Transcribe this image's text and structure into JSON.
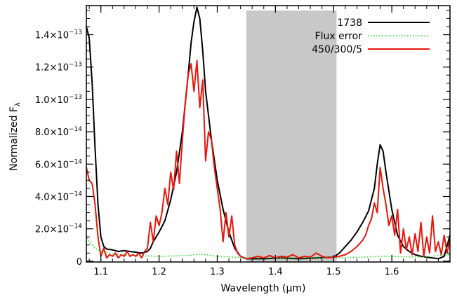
{
  "chart_data": {
    "type": "line",
    "title": "",
    "xlabel": "Wavelength (μm)",
    "ylabel": "Normalized F",
    "ylabel_subscript": "λ",
    "xlim": [
      1.075,
      1.7
    ],
    "ylim": [
      -5e-16,
      1.58e-13
    ],
    "x_ticks": [
      {
        "value": 1.1,
        "label": "1.1"
      },
      {
        "value": 1.2,
        "label": "1.2"
      },
      {
        "value": 1.3,
        "label": "1.3"
      },
      {
        "value": 1.4,
        "label": "1.4"
      },
      {
        "value": 1.5,
        "label": "1.5"
      },
      {
        "value": 1.6,
        "label": "1.6"
      }
    ],
    "y_ticks": [
      {
        "value": 0,
        "mantissa": "0",
        "exponent": ""
      },
      {
        "value": 2e-14,
        "mantissa": "2.0×10",
        "exponent": "−14"
      },
      {
        "value": 4e-14,
        "mantissa": "4.0×10",
        "exponent": "−14"
      },
      {
        "value": 6e-14,
        "mantissa": "6.0×10",
        "exponent": "−14"
      },
      {
        "value": 8e-14,
        "mantissa": "8.0×10",
        "exponent": "−14"
      },
      {
        "value": 1e-13,
        "mantissa": "1.0×10",
        "exponent": "−13"
      },
      {
        "value": 1.2e-13,
        "mantissa": "1.2×10",
        "exponent": "−13"
      },
      {
        "value": 1.4e-13,
        "mantissa": "1.4×10",
        "exponent": "−13"
      }
    ],
    "shaded_region": {
      "x": [
        1.35,
        1.505
      ],
      "color": "#c8c8c8"
    },
    "grid": false,
    "legend_position": "top-right",
    "series": [
      {
        "name": "1738",
        "color": "#000000",
        "style": "solid",
        "x": [
          1.075,
          1.08,
          1.085,
          1.09,
          1.095,
          1.1,
          1.105,
          1.11,
          1.12,
          1.13,
          1.14,
          1.15,
          1.16,
          1.17,
          1.18,
          1.185,
          1.19,
          1.2,
          1.21,
          1.22,
          1.23,
          1.24,
          1.25,
          1.255,
          1.26,
          1.265,
          1.27,
          1.275,
          1.28,
          1.29,
          1.3,
          1.31,
          1.32,
          1.33,
          1.34,
          1.35,
          1.38,
          1.41,
          1.44,
          1.47,
          1.5,
          1.51,
          1.52,
          1.53,
          1.54,
          1.55,
          1.56,
          1.57,
          1.575,
          1.58,
          1.585,
          1.59,
          1.6,
          1.61,
          1.62,
          1.63,
          1.64,
          1.65,
          1.66,
          1.67,
          1.68,
          1.69,
          1.7
        ],
        "y": [
          1.45e-13,
          1.38e-13,
          1.1e-13,
          7e-14,
          3.5e-14,
          1.5e-14,
          9e-15,
          7.5e-15,
          7e-15,
          6e-15,
          6.5e-15,
          6e-15,
          5.5e-15,
          5e-15,
          6e-15,
          8e-15,
          1.2e-14,
          1.8e-14,
          2.5e-14,
          3.8e-14,
          5.5e-14,
          8e-14,
          1.15e-13,
          1.35e-13,
          1.48e-13,
          1.57e-13,
          1.5e-13,
          1.3e-13,
          1.05e-13,
          7.5e-14,
          5e-14,
          3.2e-14,
          1.8e-14,
          8e-15,
          3e-15,
          1.5e-15,
          1.5e-15,
          2e-15,
          1.5e-15,
          2e-15,
          2.5e-15,
          5e-15,
          9e-15,
          1.3e-14,
          1.8e-14,
          2.4e-14,
          3.1e-14,
          4.5e-14,
          6e-14,
          7.2e-14,
          6.8e-14,
          5.5e-14,
          3.2e-14,
          1.6e-14,
          9e-15,
          6e-15,
          4e-15,
          3e-15,
          2.5e-15,
          2e-15,
          1.5e-15,
          3e-15,
          1.6e-14
        ]
      },
      {
        "name": "Flux error",
        "color": "#22dd22",
        "style": "dotted",
        "x": [
          1.075,
          1.08,
          1.09,
          1.1,
          1.12,
          1.15,
          1.2,
          1.25,
          1.27,
          1.3,
          1.35,
          1.4,
          1.45,
          1.5,
          1.55,
          1.58,
          1.6,
          1.65,
          1.7
        ],
        "y": [
          1.6e-14,
          1.2e-14,
          8e-15,
          6e-15,
          4.5e-15,
          3.5e-15,
          3e-15,
          3.5e-15,
          4.5e-15,
          3e-15,
          2e-15,
          2e-15,
          2e-15,
          2e-15,
          2.5e-15,
          3e-15,
          3e-15,
          2.5e-15,
          4e-15
        ]
      },
      {
        "name": "450/300/5",
        "color": "#e8160c",
        "style": "solid",
        "x": [
          1.075,
          1.08,
          1.085,
          1.09,
          1.095,
          1.1,
          1.105,
          1.11,
          1.115,
          1.12,
          1.125,
          1.13,
          1.135,
          1.14,
          1.145,
          1.15,
          1.155,
          1.16,
          1.165,
          1.17,
          1.175,
          1.18,
          1.185,
          1.19,
          1.195,
          1.2,
          1.205,
          1.21,
          1.215,
          1.22,
          1.225,
          1.23,
          1.235,
          1.24,
          1.245,
          1.25,
          1.255,
          1.26,
          1.265,
          1.27,
          1.275,
          1.28,
          1.285,
          1.29,
          1.295,
          1.3,
          1.305,
          1.31,
          1.315,
          1.32,
          1.325,
          1.33,
          1.335,
          1.34,
          1.35,
          1.36,
          1.37,
          1.38,
          1.39,
          1.4,
          1.41,
          1.42,
          1.43,
          1.44,
          1.45,
          1.46,
          1.47,
          1.48,
          1.49,
          1.5,
          1.51,
          1.52,
          1.53,
          1.54,
          1.55,
          1.555,
          1.56,
          1.565,
          1.57,
          1.575,
          1.58,
          1.585,
          1.59,
          1.595,
          1.6,
          1.605,
          1.61,
          1.615,
          1.62,
          1.625,
          1.63,
          1.635,
          1.64,
          1.645,
          1.65,
          1.655,
          1.66,
          1.665,
          1.67,
          1.675,
          1.68,
          1.685,
          1.69,
          1.695,
          1.7
        ],
        "y": [
          5.8e-14,
          5e-14,
          4.8e-14,
          3.5e-14,
          1.5e-14,
          3e-15,
          8e-15,
          2e-15,
          4e-15,
          3e-15,
          5e-15,
          2e-15,
          4e-15,
          3e-15,
          6e-15,
          3e-15,
          4e-15,
          3e-15,
          5e-15,
          2e-15,
          6e-15,
          8e-15,
          2.4e-14,
          1.2e-14,
          2.8e-14,
          2.2e-14,
          3e-14,
          4.5e-14,
          3.5e-14,
          5.5e-14,
          4.4e-14,
          6.8e-14,
          4.8e-14,
          7.5e-14,
          9.8e-14,
          1.15e-13,
          1.22e-13,
          1.05e-13,
          1.24e-13,
          9.5e-14,
          1.12e-13,
          6.2e-14,
          8e-14,
          7.5e-14,
          5.8e-14,
          4.5e-14,
          3.2e-14,
          1.2e-14,
          3e-14,
          1.5e-14,
          2.8e-14,
          1e-14,
          5e-15,
          3e-15,
          1.5e-15,
          2e-15,
          3e-15,
          2e-15,
          3.5e-15,
          2e-15,
          3e-15,
          2.5e-15,
          4e-15,
          2e-15,
          3e-15,
          2.5e-15,
          5e-15,
          3e-15,
          2e-15,
          2.5e-15,
          3e-15,
          4e-15,
          6e-15,
          9e-15,
          1.3e-14,
          1.6e-14,
          2.2e-14,
          2.6e-14,
          3.6e-14,
          3e-14,
          5.8e-14,
          4.5e-14,
          3.5e-14,
          2.2e-14,
          2.8e-14,
          1.6e-14,
          3.2e-14,
          5e-15,
          2e-14,
          7e-15,
          1.5e-14,
          4e-15,
          1.7e-14,
          6e-15,
          2.4e-14,
          3e-15,
          1.5e-14,
          5e-15,
          2.8e-14,
          6e-15,
          1.2e-14,
          4e-15,
          1.6e-14,
          5e-15,
          1.3e-14
        ]
      }
    ]
  }
}
